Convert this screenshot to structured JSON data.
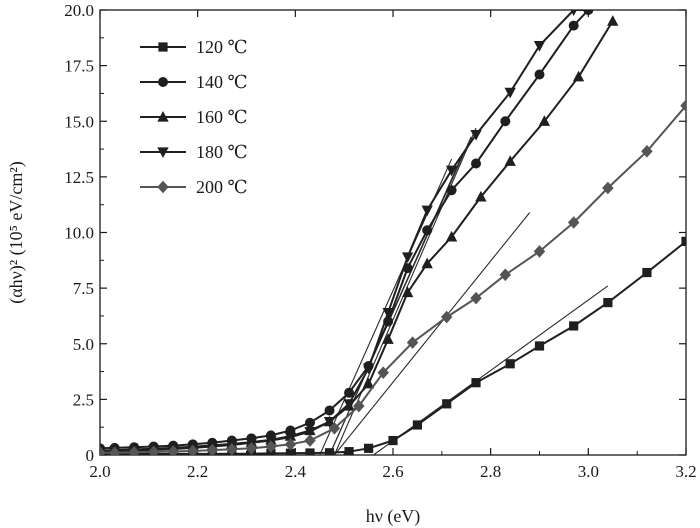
{
  "chart_data": {
    "type": "line",
    "xlabel": "hν (eV)",
    "ylabel": "(αhν)² (10⁵ eV/cm²)",
    "xlim": [
      2.0,
      3.2
    ],
    "ylim": [
      0,
      20.0
    ],
    "x_ticks": [
      "2.0",
      "2.2",
      "2.4",
      "2.6",
      "2.8",
      "3.0",
      "3.2"
    ],
    "y_ticks": [
      "0",
      "2.5",
      "5.0",
      "7.5",
      "10.0",
      "12.5",
      "15.0",
      "17.5",
      "20.0"
    ],
    "grid": false,
    "legend_position": "top-left",
    "series": [
      {
        "name": "120 ℃",
        "marker": "square",
        "x": [
          2.0,
          2.03,
          2.07,
          2.11,
          2.15,
          2.19,
          2.23,
          2.27,
          2.31,
          2.35,
          2.39,
          2.43,
          2.47,
          2.51,
          2.55,
          2.6,
          2.65,
          2.71,
          2.77,
          2.84,
          2.9,
          2.97,
          3.04,
          3.12,
          3.2
        ],
        "y": [
          0.05,
          0.05,
          0.05,
          0.05,
          0.05,
          0.05,
          0.05,
          0.06,
          0.06,
          0.07,
          0.08,
          0.09,
          0.1,
          0.15,
          0.3,
          0.65,
          1.35,
          2.3,
          3.25,
          4.1,
          4.9,
          5.8,
          6.85,
          8.2,
          9.6
        ]
      },
      {
        "name": "140 ℃",
        "marker": "circle",
        "x": [
          2.0,
          2.03,
          2.07,
          2.11,
          2.15,
          2.19,
          2.23,
          2.27,
          2.31,
          2.35,
          2.39,
          2.43,
          2.47,
          2.51,
          2.55,
          2.59,
          2.63,
          2.67,
          2.72,
          2.77,
          2.83,
          2.9,
          2.97,
          3.0
        ],
        "y": [
          0.3,
          0.32,
          0.35,
          0.38,
          0.42,
          0.48,
          0.55,
          0.65,
          0.75,
          0.88,
          1.1,
          1.45,
          2.0,
          2.8,
          4.0,
          6.0,
          8.4,
          10.1,
          11.9,
          13.1,
          15.0,
          17.1,
          19.3,
          20.0
        ]
      },
      {
        "name": "160 ℃",
        "marker": "triangle-up",
        "x": [
          2.0,
          2.03,
          2.07,
          2.11,
          2.15,
          2.19,
          2.23,
          2.27,
          2.31,
          2.35,
          2.39,
          2.43,
          2.47,
          2.51,
          2.55,
          2.59,
          2.63,
          2.67,
          2.72,
          2.78,
          2.84,
          2.91,
          2.98,
          3.05
        ],
        "y": [
          0.2,
          0.22,
          0.25,
          0.28,
          0.32,
          0.37,
          0.43,
          0.5,
          0.58,
          0.68,
          0.85,
          1.1,
          1.5,
          2.2,
          3.2,
          5.2,
          7.3,
          8.6,
          9.8,
          11.6,
          13.2,
          15.0,
          17.0,
          19.5
        ]
      },
      {
        "name": "180 ℃",
        "marker": "triangle-down",
        "x": [
          2.0,
          2.03,
          2.07,
          2.11,
          2.15,
          2.19,
          2.23,
          2.27,
          2.31,
          2.35,
          2.39,
          2.43,
          2.47,
          2.51,
          2.55,
          2.59,
          2.63,
          2.67,
          2.72,
          2.77,
          2.84,
          2.9,
          2.97,
          3.0
        ],
        "y": [
          0.15,
          0.17,
          0.2,
          0.23,
          0.27,
          0.32,
          0.38,
          0.45,
          0.55,
          0.65,
          0.8,
          1.05,
          1.5,
          2.3,
          3.9,
          6.4,
          8.9,
          11.0,
          12.8,
          14.4,
          16.3,
          18.4,
          20.0,
          20.0
        ]
      },
      {
        "name": "200 ℃",
        "marker": "diamond",
        "x": [
          2.0,
          2.03,
          2.07,
          2.11,
          2.15,
          2.19,
          2.23,
          2.27,
          2.31,
          2.35,
          2.39,
          2.43,
          2.48,
          2.53,
          2.58,
          2.64,
          2.71,
          2.77,
          2.83,
          2.9,
          2.97,
          3.04,
          3.12,
          3.2
        ],
        "y": [
          0.1,
          0.1,
          0.12,
          0.14,
          0.16,
          0.18,
          0.22,
          0.26,
          0.3,
          0.38,
          0.48,
          0.65,
          1.2,
          2.2,
          3.7,
          5.05,
          6.2,
          7.05,
          8.1,
          9.15,
          10.45,
          12.0,
          13.65,
          15.7
        ]
      }
    ],
    "tangent_lines": [
      {
        "x": [
          2.48,
          2.77
        ],
        "y": [
          0,
          14.7
        ]
      },
      {
        "x": [
          2.47,
          2.76
        ],
        "y": [
          0,
          14.3
        ]
      },
      {
        "x": [
          2.47,
          2.74
        ],
        "y": [
          0,
          13.4
        ]
      },
      {
        "x": [
          2.45,
          2.72
        ],
        "y": [
          0,
          13.3
        ]
      },
      {
        "x": [
          2.48,
          2.88
        ],
        "y": [
          0,
          10.9
        ]
      },
      {
        "x": [
          2.56,
          3.04
        ],
        "y": [
          0,
          7.6
        ]
      }
    ]
  }
}
